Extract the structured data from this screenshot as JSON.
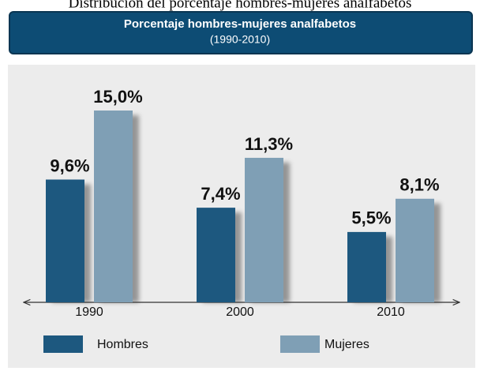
{
  "chart_data": {
    "type": "bar",
    "caption": "Distribución del porcentaje hombres-mujeres analfabetos",
    "title": "Porcentaje hombres-mujeres analfabetos",
    "subtitle": "(1990-2010)",
    "categories": [
      "1990",
      "2000",
      "2010"
    ],
    "series": [
      {
        "name": "Hombres",
        "color": "#1d587f",
        "values": [
          9.6,
          7.4,
          5.5
        ],
        "value_labels": [
          "9,6%",
          "7,4%",
          "5,5%"
        ]
      },
      {
        "name": "Mujeres",
        "color": "#7f9fb5",
        "values": [
          15.0,
          11.3,
          8.1
        ],
        "value_labels": [
          "15,0%",
          "11,3%",
          "8,1%"
        ]
      }
    ],
    "legend": "bottom"
  }
}
